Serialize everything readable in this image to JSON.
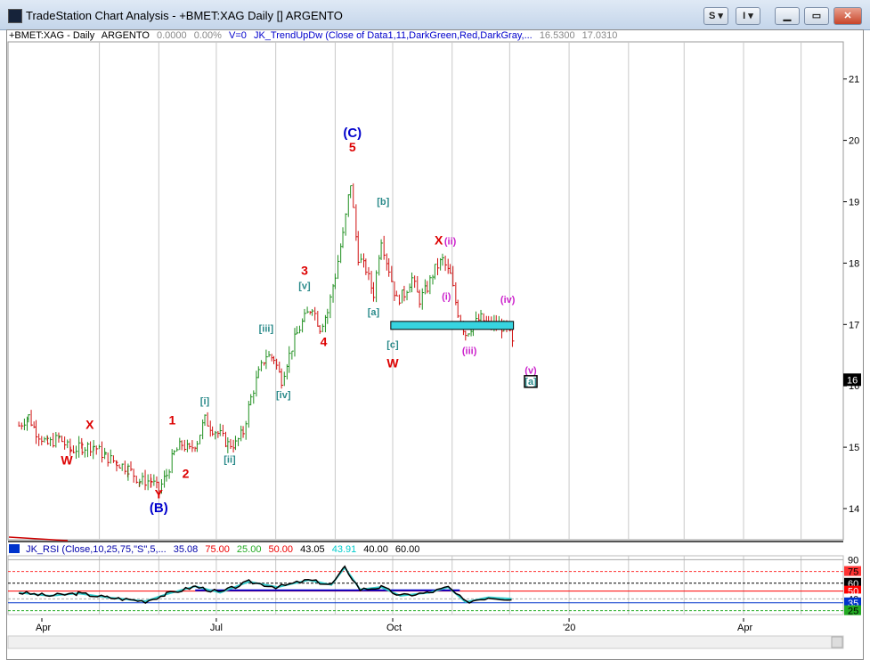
{
  "window": {
    "title": "TradeStation Chart Analysis - +BMET:XAG Daily [] ARGENTO",
    "buttons": [
      "S",
      "I"
    ]
  },
  "info_bar": {
    "symbol": "+BMET:XAG - Daily",
    "name": "ARGENTO",
    "change": "0.0000",
    "pct": "0.00%",
    "volume": "V=0",
    "study": "JK_TrendUpDw (Close of Data1,11,DarkGreen,Red,DarkGray,...",
    "value1": "16.5300",
    "value2": "17.0310"
  },
  "indicator_bar": {
    "study": "JK_RSI (Close,10,25,75,\"S\",5,...",
    "v1": "35.08",
    "v2": "75.00",
    "v3": "25.00",
    "v4": "50.00",
    "v5": "43.05",
    "v6": "43.91",
    "v7": "40.00",
    "v8": "60.00"
  },
  "chart_data": {
    "type": "bar",
    "subtype": "ohlc-price-bars",
    "y_axis": {
      "ticks": [
        14,
        15,
        16,
        17,
        18,
        19,
        20,
        21
      ],
      "position": "right",
      "range": [
        13.5,
        21.5
      ]
    },
    "x_axis": {
      "ticks": [
        "Apr",
        "Jul",
        "Oct",
        "'20",
        "Apr"
      ]
    },
    "last_price_marker": "16",
    "price_path": [
      [
        "2019-03-20",
        15.35
      ],
      [
        "2019-03-25",
        15.5
      ],
      [
        "2019-03-29",
        15.25
      ],
      [
        "2019-04-04",
        15.05
      ],
      [
        "2019-04-10",
        15.15
      ],
      [
        "2019-04-16",
        14.95
      ],
      [
        "2019-04-22",
        15.0
      ],
      [
        "2019-04-28",
        15.02
      ],
      [
        "2019-05-04",
        14.85
      ],
      [
        "2019-05-10",
        14.75
      ],
      [
        "2019-05-16",
        14.65
      ],
      [
        "2019-05-22",
        14.45
      ],
      [
        "2019-05-28",
        14.45
      ],
      [
        "2019-06-01",
        14.3
      ],
      [
        "2019-06-05",
        14.55
      ],
      [
        "2019-06-09",
        14.9
      ],
      [
        "2019-06-13",
        15.05
      ],
      [
        "2019-06-17",
        14.95
      ],
      [
        "2019-06-21",
        15.1
      ],
      [
        "2019-06-25",
        15.45
      ],
      [
        "2019-06-29",
        15.3
      ],
      [
        "2019-07-03",
        15.2
      ],
      [
        "2019-07-07",
        15.05
      ],
      [
        "2019-07-11",
        15.05
      ],
      [
        "2019-07-15",
        15.25
      ],
      [
        "2019-07-19",
        15.8
      ],
      [
        "2019-07-23",
        16.2
      ],
      [
        "2019-07-27",
        16.5
      ],
      [
        "2019-07-31",
        16.45
      ],
      [
        "2019-08-04",
        16.1
      ],
      [
        "2019-08-08",
        16.5
      ],
      [
        "2019-08-12",
        16.85
      ],
      [
        "2019-08-16",
        17.1
      ],
      [
        "2019-08-20",
        17.3
      ],
      [
        "2019-08-24",
        16.95
      ],
      [
        "2019-08-28",
        17.2
      ],
      [
        "2019-09-01",
        17.8
      ],
      [
        "2019-09-05",
        18.45
      ],
      [
        "2019-09-09",
        19.3
      ],
      [
        "2019-09-13",
        18.1
      ],
      [
        "2019-09-17",
        17.9
      ],
      [
        "2019-09-21",
        17.5
      ],
      [
        "2019-09-25",
        18.4
      ],
      [
        "2019-09-29",
        17.9
      ],
      [
        "2019-10-03",
        17.4
      ],
      [
        "2019-10-07",
        17.5
      ],
      [
        "2019-10-11",
        17.75
      ],
      [
        "2019-10-15",
        17.4
      ],
      [
        "2019-10-19",
        17.6
      ],
      [
        "2019-10-23",
        17.9
      ],
      [
        "2019-10-27",
        18.05
      ],
      [
        "2019-10-31",
        17.8
      ],
      [
        "2019-11-04",
        17.2
      ],
      [
        "2019-11-08",
        16.85
      ],
      [
        "2019-11-12",
        17.0
      ],
      [
        "2019-11-16",
        17.1
      ],
      [
        "2019-11-20",
        17.0
      ],
      [
        "2019-11-24",
        17.0
      ],
      [
        "2019-11-28",
        16.95
      ],
      [
        "2019-12-01",
        16.85
      ],
      [
        "2019-12-03",
        16.6
      ]
    ],
    "support_zone": {
      "from": "2019-09-30",
      "to": "2019-12-03",
      "low": 16.92,
      "high": 17.05
    },
    "wave_labels": [
      {
        "text": "W",
        "date": "2019-04-14",
        "price": 14.72,
        "color": "#dd0000"
      },
      {
        "text": "X",
        "date": "2019-04-26",
        "price": 15.3,
        "color": "#dd0000"
      },
      {
        "text": "Y",
        "date": "2019-06-01",
        "price": 14.17,
        "color": "#dd0000"
      },
      {
        "text": "(B)",
        "date": "2019-06-01",
        "price": 13.94,
        "color": "#0000cc"
      },
      {
        "text": "1",
        "date": "2019-06-08",
        "price": 15.37,
        "color": "#dd0000"
      },
      {
        "text": "2",
        "date": "2019-06-15",
        "price": 14.5,
        "color": "#dd0000"
      },
      {
        "text": "[i]",
        "date": "2019-06-25",
        "price": 15.7,
        "color": "#2a8a8a"
      },
      {
        "text": "[ii]",
        "date": "2019-07-08",
        "price": 14.75,
        "color": "#2a8a8a"
      },
      {
        "text": "[iii]",
        "date": "2019-07-27",
        "price": 16.88,
        "color": "#2a8a8a"
      },
      {
        "text": "[iv]",
        "date": "2019-08-05",
        "price": 15.8,
        "color": "#2a8a8a"
      },
      {
        "text": "[v]",
        "date": "2019-08-16",
        "price": 17.58,
        "color": "#2a8a8a"
      },
      {
        "text": "3",
        "date": "2019-08-16",
        "price": 17.81,
        "color": "#dd0000"
      },
      {
        "text": "4",
        "date": "2019-08-26",
        "price": 16.65,
        "color": "#dd0000"
      },
      {
        "text": "5",
        "date": "2019-09-10",
        "price": 19.82,
        "color": "#dd0000"
      },
      {
        "text": "(C)",
        "date": "2019-09-10",
        "price": 20.05,
        "color": "#0000cc"
      },
      {
        "text": "[b]",
        "date": "2019-09-26",
        "price": 18.95,
        "color": "#2a8a8a"
      },
      {
        "text": "[a]",
        "date": "2019-09-21",
        "price": 17.15,
        "color": "#2a8a8a"
      },
      {
        "text": "[c]",
        "date": "2019-10-01",
        "price": 16.62,
        "color": "#2a8a8a"
      },
      {
        "text": "W",
        "date": "2019-10-01",
        "price": 16.3,
        "color": "#dd0000"
      },
      {
        "text": "X",
        "date": "2019-10-25",
        "price": 18.3,
        "color": "#dd0000"
      },
      {
        "text": "(ii)",
        "date": "2019-10-31",
        "price": 18.3,
        "color": "#cc22cc"
      },
      {
        "text": "(i)",
        "date": "2019-10-29",
        "price": 17.4,
        "color": "#cc22cc"
      },
      {
        "text": "(iii)",
        "date": "2019-11-10",
        "price": 16.52,
        "color": "#cc22cc"
      },
      {
        "text": "(iv)",
        "date": "2019-11-30",
        "price": 17.35,
        "color": "#cc22cc"
      },
      {
        "text": "(v)",
        "date": "2019-12-12",
        "price": 16.2,
        "color": "#cc22cc"
      },
      {
        "text": "[a]",
        "date": "2019-12-12",
        "price": 16.02,
        "color": "#2a8a8a"
      }
    ]
  },
  "rsi_panel": {
    "y_ticks": [
      {
        "label": "90",
        "bg": "#ffffff",
        "fg": "#000000"
      },
      {
        "label": "75",
        "bg": "#ff3333",
        "fg": "#000000"
      },
      {
        "label": "60",
        "bg": "#000000",
        "fg": "#ffffff"
      },
      {
        "label": "50",
        "bg": "#ff0000",
        "fg": "#ffffff"
      },
      {
        "label": "40",
        "bg": "#ffffff",
        "fg": "#000000"
      },
      {
        "label": "35",
        "bg": "#0033cc",
        "fg": "#ffffff"
      },
      {
        "label": "25",
        "bg": "#22aa22",
        "fg": "#000000"
      }
    ],
    "rsi_path": [
      [
        "2019-03-20",
        48
      ],
      [
        "2019-04-05",
        44
      ],
      [
        "2019-04-20",
        47
      ],
      [
        "2019-05-05",
        42
      ],
      [
        "2019-05-25",
        37
      ],
      [
        "2019-06-05",
        46
      ],
      [
        "2019-06-20",
        56
      ],
      [
        "2019-07-03",
        48
      ],
      [
        "2019-07-18",
        62
      ],
      [
        "2019-08-02",
        55
      ],
      [
        "2019-08-18",
        64
      ],
      [
        "2019-08-30",
        58
      ],
      [
        "2019-09-06",
        80
      ],
      [
        "2019-09-14",
        52
      ],
      [
        "2019-09-25",
        55
      ],
      [
        "2019-10-05",
        44
      ],
      [
        "2019-10-20",
        48
      ],
      [
        "2019-10-30",
        55
      ],
      [
        "2019-11-08",
        36
      ],
      [
        "2019-11-20",
        42
      ],
      [
        "2019-12-03",
        40
      ]
    ]
  }
}
